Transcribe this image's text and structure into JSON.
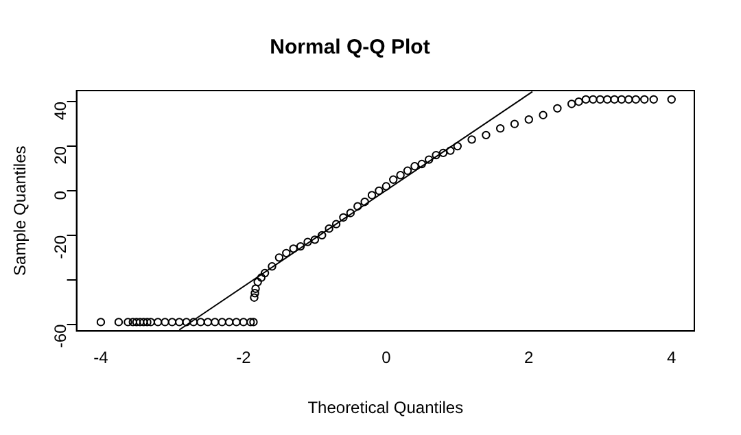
{
  "chart_data": {
    "type": "scatter",
    "title": "Normal Q-Q Plot",
    "xlabel": "Theoretical Quantiles",
    "ylabel": "Sample Quantiles",
    "xlim": [
      -4.34,
      4.32
    ],
    "ylim": [
      -63,
      45
    ],
    "xticks": [
      -4,
      -2,
      0,
      2,
      4
    ],
    "yticks": [
      -60,
      {
        "value": -40,
        "label": null
      },
      -20,
      0,
      20,
      40
    ],
    "grid": false,
    "legend": false,
    "marker": "circle",
    "series": [
      {
        "color": "#000000",
        "x": [
          -4,
          -3.75,
          -3.62,
          -3.55,
          -3.5,
          -3.45,
          -3.4,
          -3.35,
          -3.3,
          -3.2,
          -3.1,
          -3.0,
          -2.9,
          -2.8,
          -2.7,
          -2.6,
          -2.5,
          -2.4,
          -2.3,
          -2.2,
          -2.1,
          -2.0,
          -1.9,
          -1.86,
          -1.85,
          -1.84,
          -1.83,
          -1.8,
          -1.75,
          -1.7,
          -1.6,
          -1.5,
          -1.4,
          -1.3,
          -1.2,
          -1.1,
          -1,
          -0.9,
          -0.8,
          -0.7,
          -0.6,
          -0.5,
          -0.4,
          -0.3,
          -0.2,
          -0.1,
          0,
          0.1,
          0.2,
          0.3,
          0.4,
          0.5,
          0.6,
          0.7,
          0.8,
          0.9,
          1,
          1.2,
          1.4,
          1.6,
          1.8,
          2,
          2.2,
          2.4,
          2.6,
          2.7,
          2.8,
          2.9,
          3.0,
          3.1,
          3.2,
          3.3,
          3.4,
          3.5,
          3.62,
          3.75,
          4.0
        ],
        "values": [
          -59,
          -59,
          -59,
          -59,
          -59,
          -59,
          -59,
          -59,
          -59,
          -59,
          -59,
          -59,
          -59,
          -59,
          -59,
          -59,
          -59,
          -59,
          -59,
          -59,
          -59,
          -59,
          -59,
          -59,
          -48,
          -46,
          -44,
          -41,
          -39,
          -37,
          -34,
          -30,
          -28,
          -26,
          -25,
          -23,
          -22,
          -20,
          -17,
          -15,
          -12,
          -10,
          -7,
          -5,
          -2,
          0,
          2,
          5,
          7,
          9,
          11,
          12,
          14,
          16,
          17,
          18,
          20,
          23,
          25,
          28,
          30,
          32,
          34,
          37,
          39,
          40,
          41,
          41,
          41,
          41,
          41,
          41,
          41,
          41,
          41,
          41,
          41
        ]
      },
      {
        "type": "line",
        "color": "#000000",
        "marker": "none",
        "x": [
          -2.9,
          2.05
        ],
        "values": [
          -62.5,
          44.5
        ]
      }
    ]
  }
}
